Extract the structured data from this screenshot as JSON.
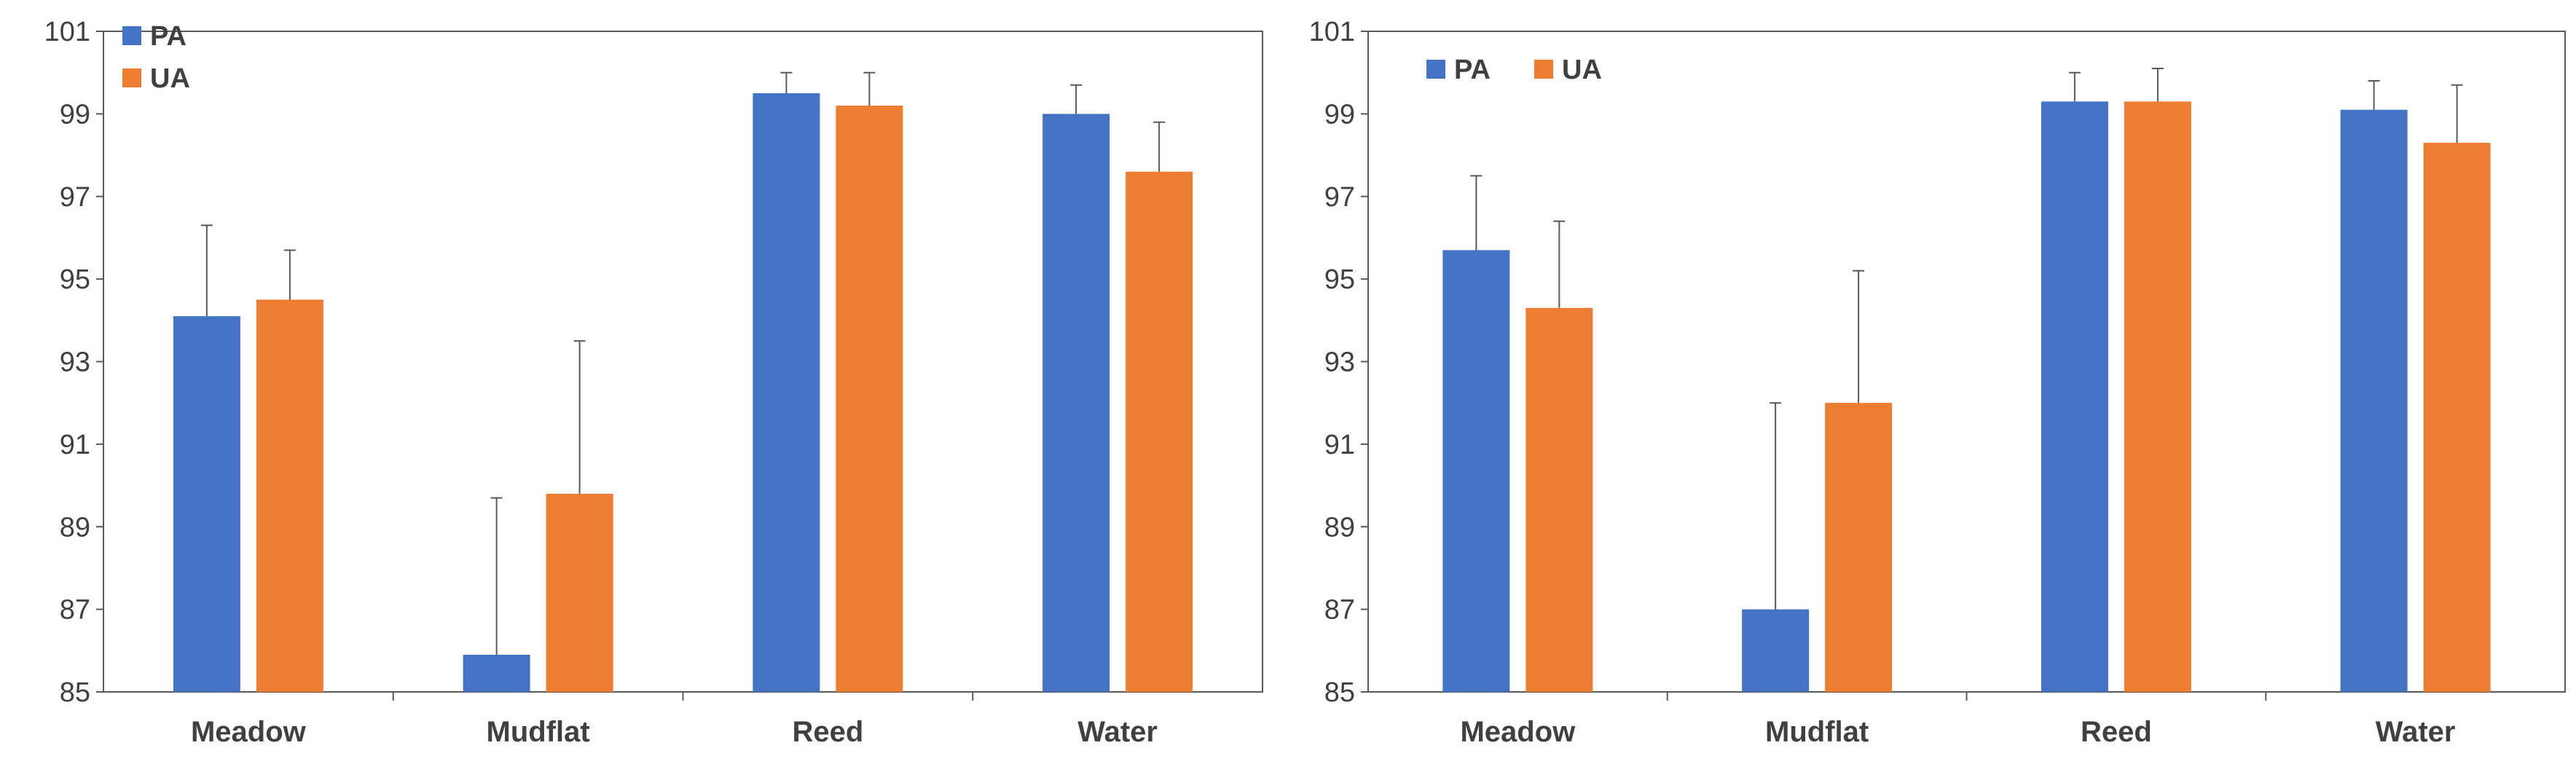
{
  "chart_data": [
    {
      "type": "bar",
      "categories": [
        "Meadow",
        "Mudflat",
        "Reed",
        "Water"
      ],
      "series": [
        {
          "name": "PA",
          "color": "#4472C4",
          "values": [
            94.1,
            85.9,
            99.5,
            99.0
          ],
          "error": [
            2.2,
            3.8,
            0.5,
            0.7
          ]
        },
        {
          "name": "UA",
          "color": "#ED7D31",
          "values": [
            94.5,
            89.8,
            99.2,
            97.6
          ],
          "error": [
            1.2,
            3.7,
            0.8,
            1.2
          ]
        }
      ],
      "ylim": [
        85,
        101
      ],
      "yticks": [
        "85",
        "87",
        "89",
        "91",
        "93",
        "95",
        "97",
        "99",
        "101"
      ],
      "legend_position": "top-left-stacked",
      "grid": false
    },
    {
      "type": "bar",
      "categories": [
        "Meadow",
        "Mudflat",
        "Reed",
        "Water"
      ],
      "series": [
        {
          "name": "PA",
          "color": "#4472C4",
          "values": [
            95.7,
            87.0,
            99.3,
            99.1
          ],
          "error": [
            1.8,
            5.0,
            0.7,
            0.7
          ]
        },
        {
          "name": "UA",
          "color": "#ED7D31",
          "values": [
            94.3,
            92.0,
            99.3,
            98.3
          ],
          "error": [
            2.1,
            3.2,
            0.8,
            1.4
          ]
        }
      ],
      "ylim": [
        85,
        101
      ],
      "yticks": [
        "85",
        "87",
        "89",
        "91",
        "93",
        "95",
        "97",
        "99",
        "101"
      ],
      "legend_position": "top-left-inline",
      "grid": false
    }
  ]
}
